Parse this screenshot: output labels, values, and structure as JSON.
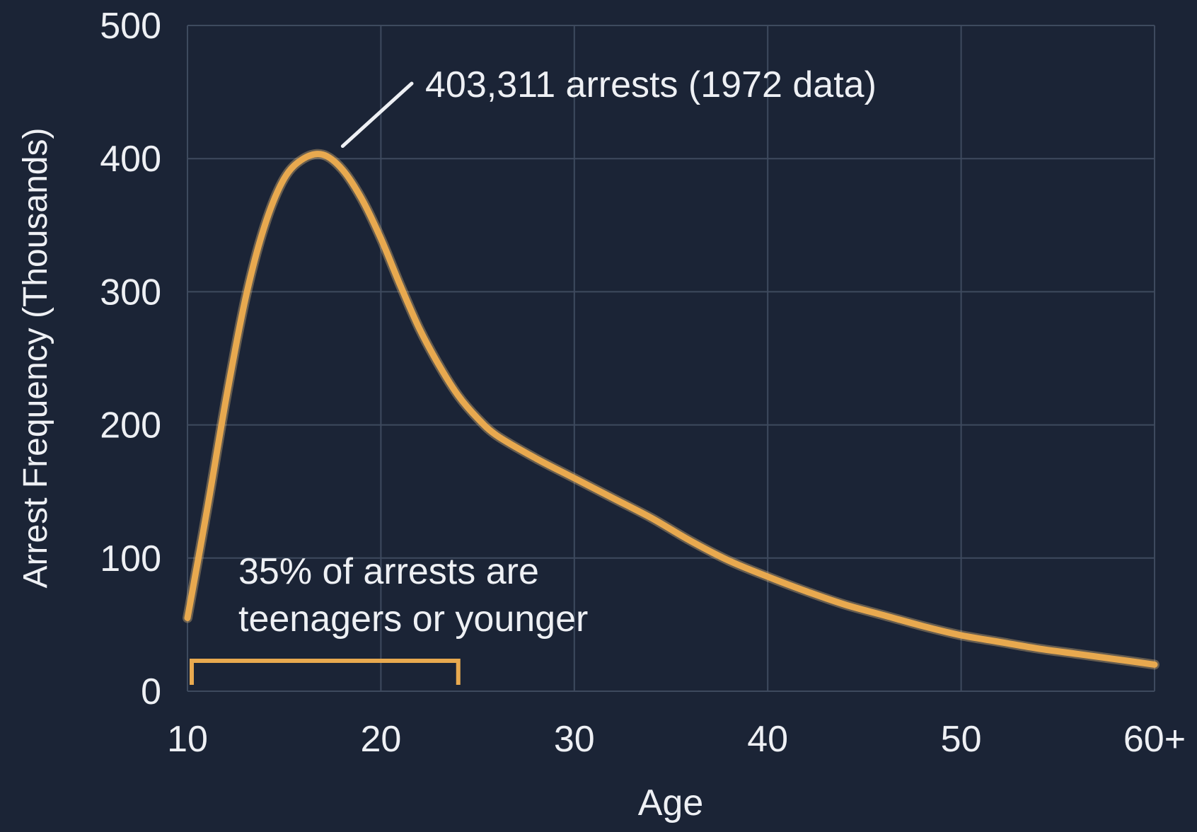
{
  "colors": {
    "background": "#1b2436",
    "grid": "#3e4a5e",
    "axis_text": "#eef0f4",
    "curve": "#e8a94f",
    "bracket": "#e8a94f"
  },
  "chart_data": {
    "type": "line",
    "title": "",
    "xlabel": "Age",
    "ylabel": "Arrest Frequency (Thousands)",
    "xlim": [
      10,
      60
    ],
    "ylim": [
      0,
      500
    ],
    "grid": true,
    "x_ticks": [
      10,
      20,
      30,
      40,
      50,
      60
    ],
    "x_tick_labels": [
      "10",
      "20",
      "30",
      "40",
      "50",
      "60+"
    ],
    "y_ticks": [
      0,
      100,
      200,
      300,
      400,
      500
    ],
    "y_tick_labels": [
      "0",
      "100",
      "200",
      "300",
      "400",
      "500"
    ],
    "series": [
      {
        "x": [
          10,
          11,
          12,
          13,
          14,
          15,
          16,
          17,
          18,
          19,
          20,
          21,
          22,
          23,
          24,
          25,
          26,
          28,
          30,
          32,
          34,
          36,
          38,
          40,
          42,
          44,
          46,
          48,
          50,
          52,
          54,
          56,
          58,
          60
        ],
        "values": [
          55,
          135,
          220,
          295,
          350,
          385,
          400,
          403,
          392,
          370,
          340,
          305,
          272,
          245,
          222,
          205,
          192,
          175,
          160,
          145,
          130,
          113,
          98,
          86,
          75,
          65,
          57,
          49,
          42,
          37,
          32,
          28,
          24,
          20
        ]
      }
    ],
    "annotations": [
      {
        "text": "403,311 arrests (1972 data)",
        "x": 17,
        "y": 403
      },
      {
        "lines": [
          "35% of arrests are",
          "teenagers or younger"
        ],
        "range": [
          10,
          24
        ]
      }
    ]
  }
}
